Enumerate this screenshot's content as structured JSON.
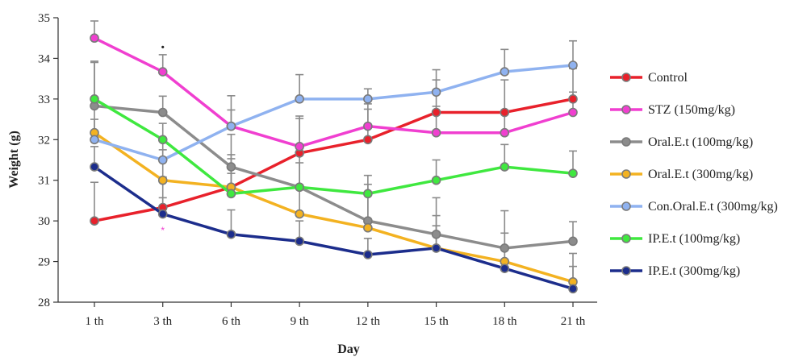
{
  "chart_data": {
    "type": "line",
    "title": "",
    "xlabel": "Day",
    "ylabel": "Weight (g)",
    "categories": [
      "1 th",
      "3 th",
      "6 th",
      "9 th",
      "12 th",
      "15 th",
      "18 th",
      "21 th"
    ],
    "ylim": [
      28,
      35
    ],
    "yticks": [
      28,
      29,
      30,
      31,
      32,
      33,
      34,
      35
    ],
    "legend_position": "right",
    "grid": false,
    "series": [
      {
        "name": "Control",
        "color": "#e8212b",
        "values": [
          30.0,
          30.33,
          30.83,
          31.67,
          32.0,
          32.67,
          32.67,
          33.0
        ],
        "error": [
          0.95,
          0.75,
          0.8,
          0.85,
          0.75,
          0.8,
          0.8,
          0.75
        ]
      },
      {
        "name": "STZ (150mg/kg)",
        "color": "#f03fd0",
        "values": [
          34.5,
          33.67,
          32.33,
          31.83,
          32.33,
          32.17,
          32.17,
          32.67
        ],
        "error": [
          0.42,
          0.42,
          0.4,
          0.75,
          0.55,
          0.65,
          0.5,
          0.5
        ]
      },
      {
        "name": "Oral.E.t (100mg/kg)",
        "color": "#8c8c8c",
        "values": [
          32.83,
          32.67,
          31.33,
          30.83,
          30.0,
          29.67,
          29.33,
          29.5
        ],
        "error": [
          1.1,
          0.4,
          0.8,
          0.8,
          0.9,
          0.9,
          0.92,
          0.48
        ]
      },
      {
        "name": "Oral.E.t (300mg/kg)",
        "color": "#f3b221",
        "values": [
          32.17,
          31.0,
          30.83,
          30.17,
          29.83,
          29.33,
          29.0,
          28.5
        ],
        "error": [
          0.8,
          0.75,
          0.7,
          0.7,
          0.8,
          0.8,
          0.7,
          0.7
        ]
      },
      {
        "name": "Con.Oral.E.t (300mg/kg)",
        "color": "#8fb2f0",
        "values": [
          32.0,
          31.5,
          32.33,
          33.0,
          33.0,
          33.17,
          33.67,
          33.83
        ],
        "error": [
          0.5,
          0.5,
          0.75,
          0.6,
          0.25,
          0.55,
          0.55,
          0.6
        ]
      },
      {
        "name": "IP.E.t (100mg/kg)",
        "color": "#3fe83f",
        "values": [
          33.0,
          32.0,
          30.67,
          30.83,
          30.67,
          31.0,
          31.33,
          31.17
        ],
        "error": [
          0.9,
          0.4,
          0.5,
          0.6,
          0.45,
          0.5,
          0.55,
          0.55
        ]
      },
      {
        "name": "IP.E.t (300mg/kg)",
        "color": "#1c2d8c",
        "values": [
          31.33,
          30.17,
          29.67,
          29.5,
          29.17,
          29.33,
          28.83,
          28.33
        ],
        "error": [
          0.5,
          0.4,
          0.6,
          0.5,
          0.4,
          0.55,
          0.55,
          0.55
        ]
      }
    ],
    "annotations": [
      {
        "text": "•",
        "x": "3 th",
        "y": 34.3,
        "color": "#222222"
      },
      {
        "text": "*",
        "x": "3 th",
        "y": 29.8,
        "color": "#f03fd0"
      }
    ]
  }
}
